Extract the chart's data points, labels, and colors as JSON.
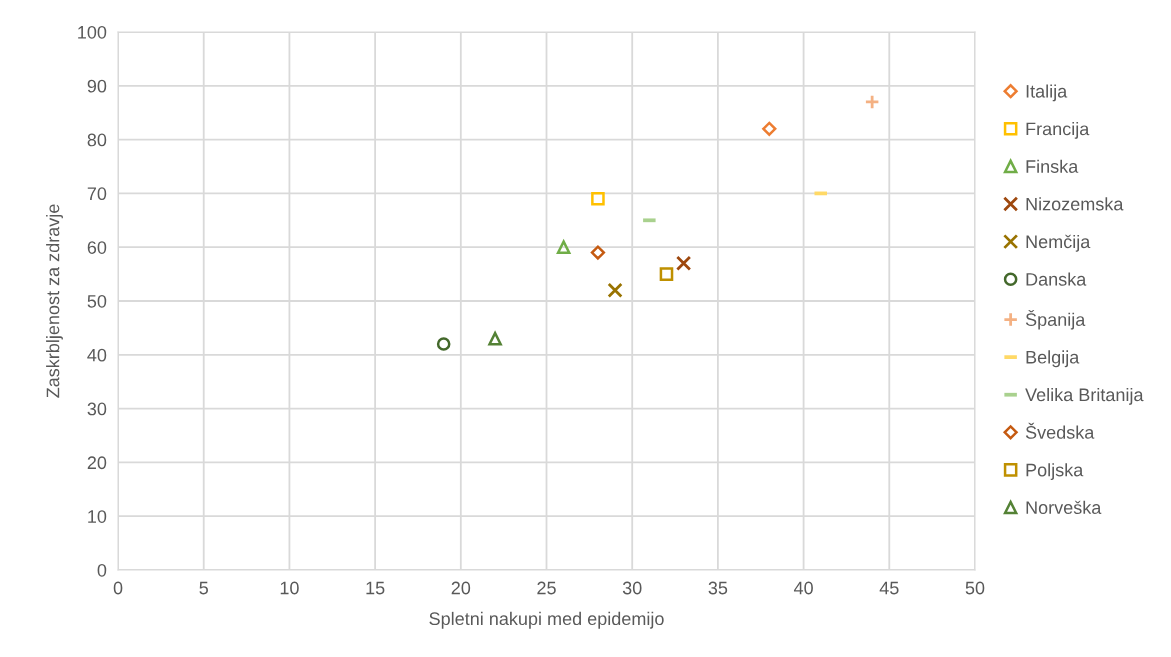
{
  "chart_data": {
    "type": "scatter",
    "xlabel": "Spletni nakupi med epidemijo",
    "ylabel": "Zaskrbljenost za zdravje",
    "xlim": [
      0,
      50
    ],
    "xticks": [
      0,
      5,
      10,
      15,
      20,
      25,
      30,
      35,
      40,
      45,
      50
    ],
    "ylim": [
      0,
      100
    ],
    "yticks": [
      0,
      10,
      20,
      30,
      40,
      50,
      60,
      70,
      80,
      90,
      100
    ],
    "grid": true,
    "legend": "right",
    "series": [
      {
        "name": "Italija",
        "color": "#ed7d31",
        "marker": "diamond",
        "x": [
          38
        ],
        "values": [
          82
        ]
      },
      {
        "name": "Francija",
        "color": "#ffc000",
        "marker": "square",
        "x": [
          28
        ],
        "values": [
          69
        ]
      },
      {
        "name": "Finska",
        "color": "#70ad47",
        "marker": "triangle",
        "x": [
          26
        ],
        "values": [
          60
        ]
      },
      {
        "name": "Nizozemska",
        "color": "#9e480e",
        "marker": "cross",
        "x": [
          33
        ],
        "values": [
          57
        ]
      },
      {
        "name": "Nemčija",
        "color": "#997300",
        "marker": "cross",
        "x": [
          29
        ],
        "values": [
          52
        ]
      },
      {
        "name": "Danska",
        "color": "#43682b",
        "marker": "circle",
        "x": [
          19
        ],
        "values": [
          42
        ]
      },
      {
        "name": "Španija",
        "color": "#f4b183",
        "marker": "plus",
        "x": [
          44
        ],
        "values": [
          87
        ]
      },
      {
        "name": "Belgija",
        "color": "#ffd966",
        "x": [
          41
        ],
        "values": [
          70
        ]
      },
      {
        "name": "Velika Britanija",
        "color": "#a9d18e",
        "x": [
          31
        ],
        "values": [
          65
        ]
      },
      {
        "name": "Švedska",
        "color": "#c55a11",
        "marker": "diamond",
        "x": [
          28
        ],
        "values": [
          59
        ]
      },
      {
        "name": "Poljska",
        "color": "#bf9000",
        "marker": "square",
        "x": [
          32
        ],
        "values": [
          55
        ]
      },
      {
        "name": "Norveška",
        "color": "#548235",
        "marker": "triangle",
        "x": [
          22
        ],
        "values": [
          43
        ]
      }
    ]
  }
}
